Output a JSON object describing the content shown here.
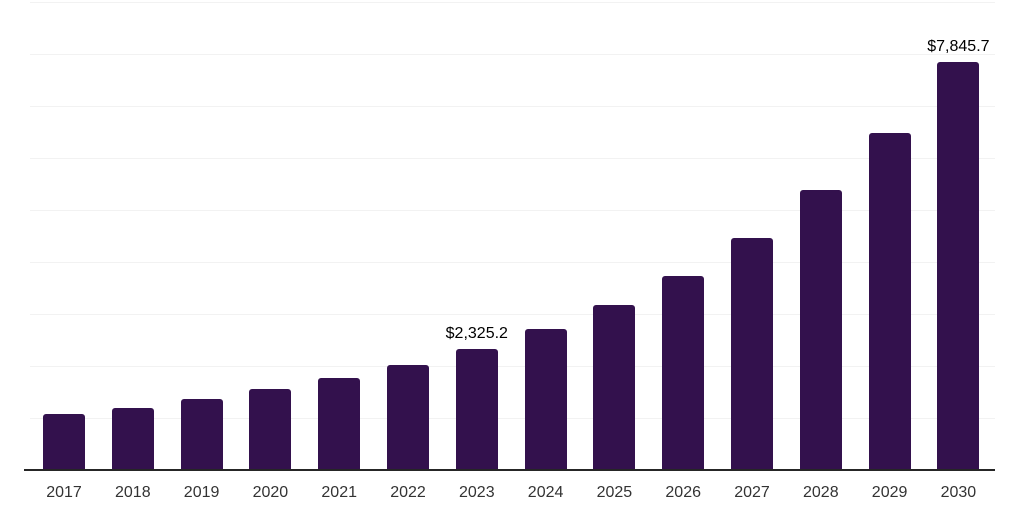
{
  "chart_data": {
    "type": "bar",
    "title": "",
    "xlabel": "",
    "ylabel": "",
    "categories": [
      "2017",
      "2018",
      "2019",
      "2020",
      "2021",
      "2022",
      "2023",
      "2024",
      "2025",
      "2026",
      "2027",
      "2028",
      "2029",
      "2030"
    ],
    "values": [
      1075,
      1200,
      1360,
      1550,
      1765,
      2010,
      2325.2,
      2705,
      3170,
      3730,
      4470,
      5385,
      6485,
      7845.7
    ],
    "value_labels": [
      "",
      "",
      "",
      "",
      "",
      "",
      "$2,325.2",
      "",
      "",
      "",
      "",
      "",
      "",
      "$7,845.7"
    ],
    "ylim": [
      0,
      9000
    ],
    "grid_step": 1000,
    "grid": true,
    "legend": "none",
    "y_tick_labels_visible": false
  },
  "colors": {
    "bar": "#33114D",
    "gridline": "#f2f2f2",
    "axis_line": "#262626",
    "tick_label": "#333333",
    "value_label": "#000000",
    "background": "#ffffff"
  }
}
